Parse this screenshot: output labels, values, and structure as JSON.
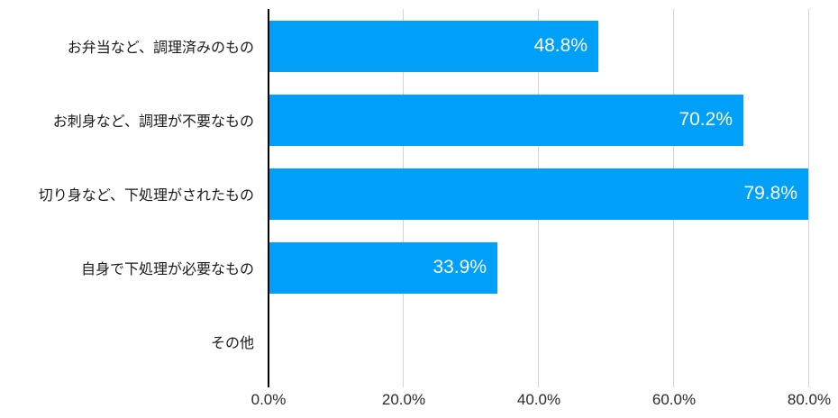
{
  "chart_data": {
    "type": "bar",
    "orientation": "horizontal",
    "title": "",
    "xlabel": "",
    "ylabel": "",
    "categories": [
      "お弁当など、調理済みのもの",
      "お刺身など、調理が不要なもの",
      "切り身など、下処理がされたもの",
      "自身で下処理が必要なもの",
      "その他"
    ],
    "values": [
      48.8,
      70.2,
      79.8,
      33.9,
      0
    ],
    "value_labels": [
      "48.8%",
      "70.2%",
      "79.8%",
      "33.9%",
      ""
    ],
    "x_ticks": [
      {
        "value": 0,
        "label": "0.0%"
      },
      {
        "value": 20,
        "label": "20.0%"
      },
      {
        "value": 40,
        "label": "40.0%"
      },
      {
        "value": 60,
        "label": "60.0%"
      },
      {
        "value": 80,
        "label": "80.0%"
      }
    ],
    "xlim": [
      0,
      83
    ],
    "grid": true,
    "legend": false,
    "colors": {
      "bar": "#00a0f8",
      "gridline": "#d4d4d4",
      "axis": "#000000",
      "category_text": "#1a1a1a",
      "tick_text": "#2a2a2a",
      "value_text": "#ffffff"
    }
  }
}
